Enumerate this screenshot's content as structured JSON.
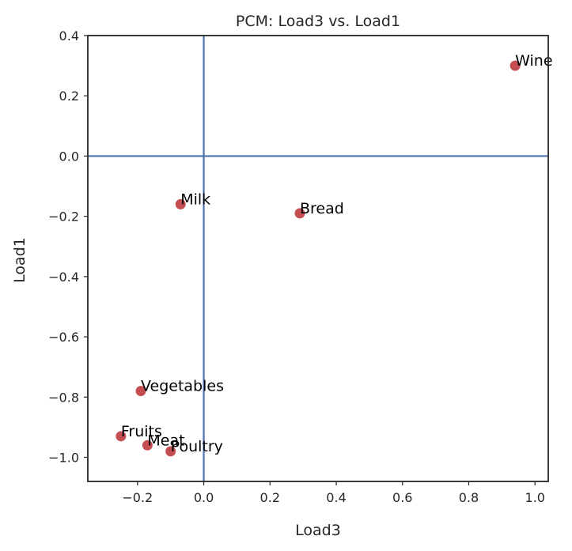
{
  "chart_data": {
    "type": "scatter",
    "title": "PCM: Load3 vs. Load1",
    "xlabel": "Load3",
    "ylabel": "Load1",
    "xlim": [
      -0.35,
      1.04
    ],
    "ylim": [
      -1.08,
      0.4
    ],
    "xticks": [
      -0.2,
      0.0,
      0.2,
      0.4,
      0.6,
      0.8,
      1.0
    ],
    "xtick_labels": [
      "−0.2",
      "0.0",
      "0.2",
      "0.4",
      "0.6",
      "0.8",
      "1.0"
    ],
    "yticks": [
      0.4,
      0.2,
      0.0,
      -0.2,
      -0.4,
      -0.6,
      -0.8,
      -1.0
    ],
    "ytick_labels": [
      "0.4",
      "0.2",
      "0.0",
      "−0.2",
      "−0.4",
      "−0.6",
      "−0.8",
      "−1.0"
    ],
    "grid": false,
    "reference_lines": {
      "x": 0.0,
      "y": 0.0
    },
    "point_color": "#c44e52",
    "line_color": "#4c72b0",
    "points": [
      {
        "label": "Wine",
        "x": 0.94,
        "y": 0.3
      },
      {
        "label": "Milk",
        "x": -0.07,
        "y": -0.16
      },
      {
        "label": "Bread",
        "x": 0.29,
        "y": -0.19
      },
      {
        "label": "Vegetables",
        "x": -0.19,
        "y": -0.78
      },
      {
        "label": "Fruits",
        "x": -0.25,
        "y": -0.93
      },
      {
        "label": "Meat",
        "x": -0.17,
        "y": -0.96
      },
      {
        "label": "Poultry",
        "x": -0.1,
        "y": -0.98
      }
    ]
  }
}
